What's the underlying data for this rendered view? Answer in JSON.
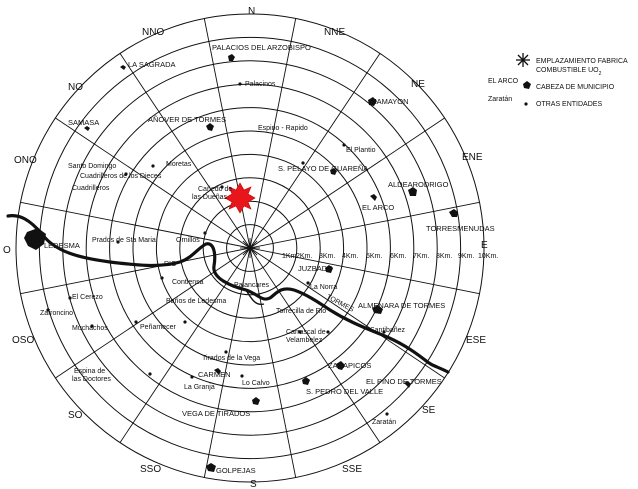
{
  "directions": [
    "N",
    "NNE",
    "NE",
    "ENE",
    "E",
    "ESE",
    "SE",
    "SSE",
    "S",
    "SSO",
    "SO",
    "OSO",
    "O",
    "ONO",
    "NO",
    "NNO"
  ],
  "distances": [
    "1Km.",
    "2Km.",
    "3Km.",
    "4Km.",
    "5Km.",
    "6Km.",
    "7Km.",
    "8Km.",
    "9Km.",
    "10Km."
  ],
  "legend": {
    "site_label": "EMPLAZAMIENTO FABRICA COMBUSTIBLE UO2",
    "site_label_line1": "EMPLAZAMIENTO FABRICA",
    "site_label_line2": "COMBUSTIBLE UO",
    "site_label_sub": "2",
    "municipio_sample": "EL ARCO",
    "municipio_label": "CABEZA DE MUNICIPIO",
    "entidad_sample": "Zaratán",
    "entidad_label": "OTRAS ENTIDADES"
  },
  "places": {
    "palacios": "PALACIOS DEL ARZOBISPO",
    "palacinos": "Palacinos",
    "sagrada": "LA SAGRADA",
    "zamayon": "ZAMAYON",
    "samasa": "SAMASA",
    "anover": "AÑOVER DE TORMES",
    "espino": "Espino - Rapido",
    "elplantio": "El Plantio",
    "santodomingo": "Santo Domingo",
    "cuadrilleros_diez": "Cuadrilleros de los Dieces",
    "cuadrilleros": "Cuadrilleros",
    "moretas": "Moretas",
    "canedo1": "Cañedo de",
    "canedo2": "las Dueñas",
    "spelayo": "S. PELAYO DE GUAREÑA",
    "aldearodrigo": "ALDEARODRIGO",
    "elarco": "EL ARCO",
    "torresmenudas": "TORRESMENUDAS",
    "ledesma": "LEDESMA",
    "pradosstamaria": "Prados de Sta Maria",
    "ornillos": "Ornillos",
    "rio": "RIO",
    "juzbado": "JUZBADO",
    "tormes": "TORMES",
    "elcerezo": "El Cerezo",
    "contiensa": "Contiensa",
    "palancares": "Palancares",
    "lanorra": "La Norra",
    "almenara": "ALMENARA DE TORMES",
    "zafroncino": "Zafroncino",
    "banos": "Baños de Ledesma",
    "torrecilla": "Torrecilla de Rio",
    "muchachos": "Muchachos",
    "penamecer": "Peñamecer",
    "santibanez": "Santibañez",
    "carrascal1": "Carrascal de",
    "carrascal2": "Velambelez",
    "tirados": "Tirados de la Vega",
    "carmen": "CARMEN",
    "zarapicos": "ZARAPICOS",
    "espinadoctores1": "Espina de",
    "espinadoctores2": "las Doctores",
    "lagranja": "La Granja",
    "lacalva": "Lo Calvo",
    "spedro": "S. PEDRO DEL VALLE",
    "elpino": "EL PINO DE TORMES",
    "vegatirados": "VEGA DE TIRADOS",
    "zaratan": "Zaratán",
    "golpejas": "GOLPEJAS"
  }
}
